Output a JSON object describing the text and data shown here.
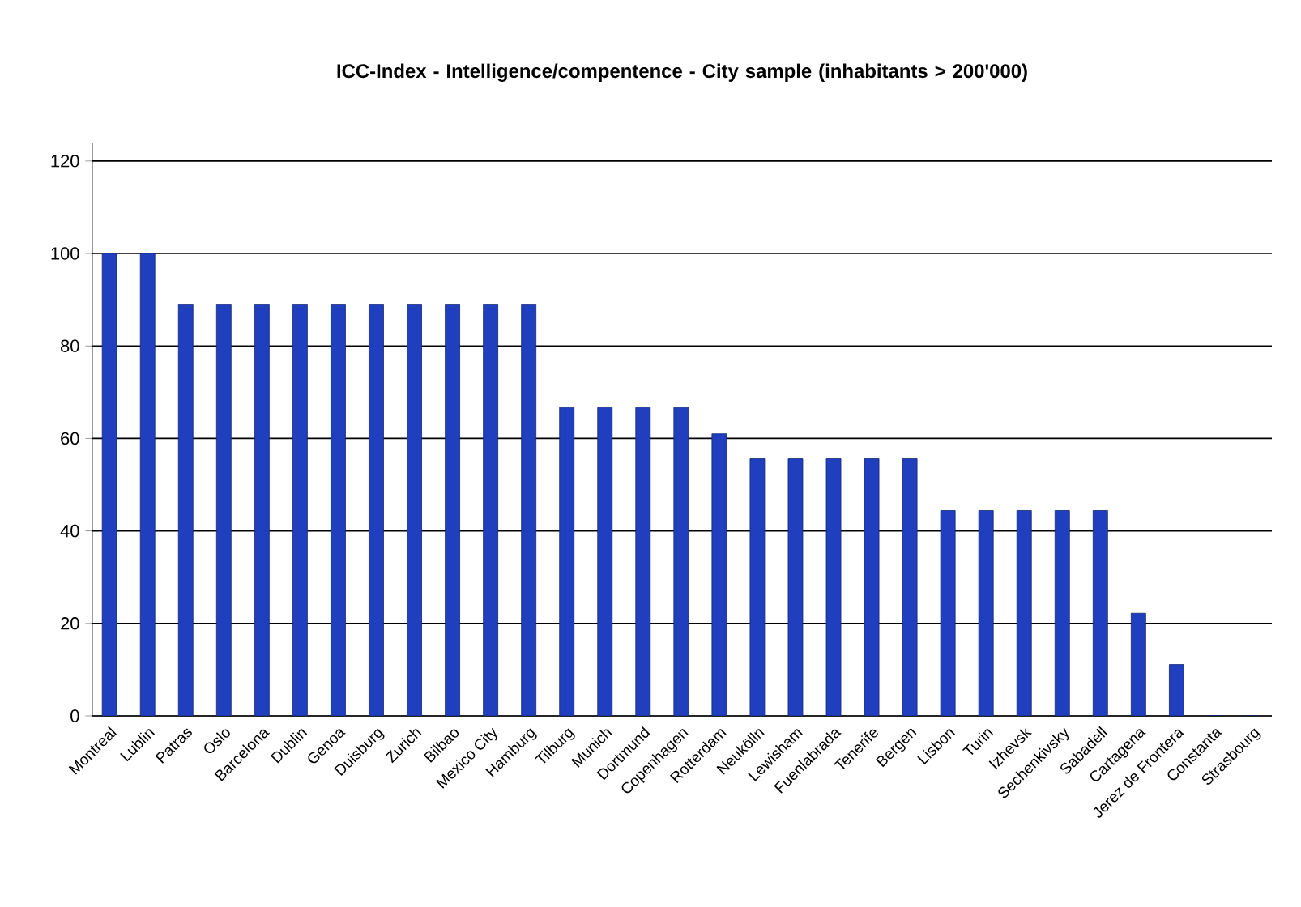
{
  "chart_data": {
    "type": "bar",
    "title": "ICC-Index - Intelligence/compentence - City sample (inhabitants > 200'000)",
    "categories": [
      "Montreal",
      "Lublin",
      "Patras",
      "Oslo",
      "Barcelona",
      "Dublin",
      "Genoa",
      "Duisburg",
      "Zurich",
      "Bilbao",
      "Mexico City",
      "Hamburg",
      "Tilburg",
      "Munich",
      "Dortmund",
      "Copenhagen",
      "Rotterdam",
      "Neukölln",
      "Lewisham",
      "Fuenlabrada",
      "Tenerife",
      "Bergen",
      "Lisbon",
      "Turin",
      "Izhevsk",
      "Sechenkivsky",
      "Sabadell",
      "Cartagena",
      "Jerez de Frontera",
      "Constanta",
      "Strasbourg"
    ],
    "values": [
      100,
      100,
      88.9,
      88.9,
      88.9,
      88.9,
      88.9,
      88.9,
      88.9,
      88.9,
      88.9,
      88.9,
      66.7,
      66.7,
      66.7,
      66.7,
      61,
      55.6,
      55.6,
      55.6,
      55.6,
      55.6,
      44.4,
      44.4,
      44.4,
      44.4,
      44.4,
      22.2,
      11.1,
      0,
      0
    ],
    "color": "#1f3fbf",
    "ylim": [
      0,
      124
    ],
    "yticks": [
      0,
      20,
      40,
      60,
      80,
      100,
      120
    ],
    "grid": "y"
  }
}
